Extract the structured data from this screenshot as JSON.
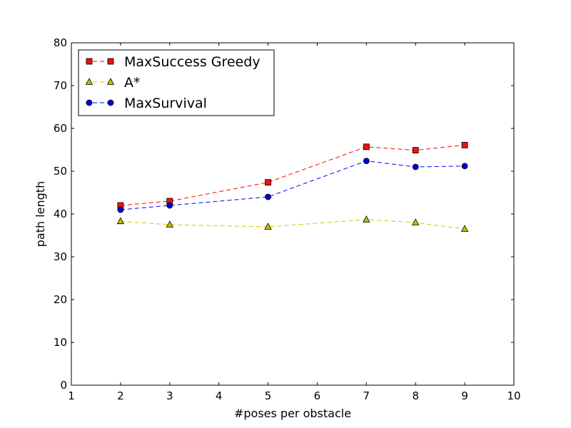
{
  "chart_data": {
    "type": "line",
    "xlabel": "#poses per obstacle",
    "ylabel": "path length",
    "xlim": [
      1,
      10
    ],
    "ylim": [
      0,
      80
    ],
    "xticks": [
      1,
      2,
      3,
      4,
      5,
      6,
      7,
      8,
      9,
      10
    ],
    "yticks": [
      0,
      10,
      20,
      30,
      40,
      50,
      60,
      70,
      80
    ],
    "grid": false,
    "legend_position": "top-left",
    "x": [
      2,
      3,
      5,
      7,
      8,
      9
    ],
    "series": [
      {
        "name": "MaxSuccess Greedy",
        "color": "#ff0000",
        "fill": "#ee1111",
        "marker": "square",
        "values": [
          42.0,
          43.0,
          47.4,
          55.7,
          54.9,
          56.1
        ]
      },
      {
        "name": "A*",
        "color": "#d4c400",
        "fill": "#bfbf00",
        "marker": "triangle",
        "values": [
          38.3,
          37.5,
          37.0,
          38.7,
          38.0,
          36.5
        ]
      },
      {
        "name": "MaxSurvival",
        "color": "#0000ff",
        "fill": "#0000dd",
        "marker": "circle",
        "values": [
          41.0,
          42.0,
          44.0,
          52.4,
          51.0,
          51.2
        ]
      }
    ]
  }
}
